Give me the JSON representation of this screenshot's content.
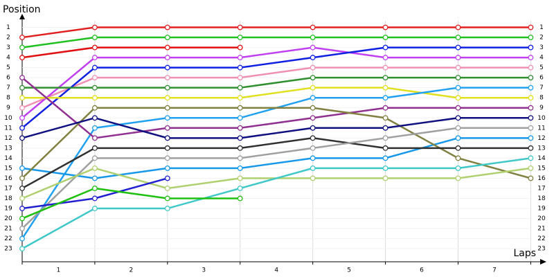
{
  "chart_data": {
    "type": "line",
    "y_label": "Position",
    "x_label": "Laps",
    "x": [
      0,
      1,
      2,
      3,
      4,
      5,
      6,
      7
    ],
    "xlim": [
      0,
      7.12
    ],
    "xticks": [
      {
        "value": 0.5,
        "label": "1"
      },
      {
        "value": 1.5,
        "label": "2"
      },
      {
        "value": 2.5,
        "label": "3"
      },
      {
        "value": 3.5,
        "label": "4"
      },
      {
        "value": 4.5,
        "label": "5"
      },
      {
        "value": 5.5,
        "label": "6"
      },
      {
        "value": 6.5,
        "label": "7"
      }
    ],
    "ylim": [
      24.3,
      0
    ],
    "yticks": [
      1,
      2,
      3,
      4,
      5,
      6,
      7,
      8,
      9,
      10,
      11,
      12,
      13,
      14,
      15,
      16,
      17,
      18,
      19,
      20,
      21,
      22,
      23
    ],
    "grid": true,
    "series": [
      {
        "color": "#e02020",
        "values": [
          2,
          1,
          1,
          1,
          1,
          1,
          1,
          1
        ]
      },
      {
        "color": "#20c020",
        "values": [
          3,
          2,
          2,
          2,
          2,
          2,
          2,
          2
        ]
      },
      {
        "color": "#e01010",
        "values": [
          4,
          3,
          3,
          3,
          null,
          null,
          null,
          null
        ]
      },
      {
        "color": "#f090b0",
        "values": [
          9,
          6,
          6,
          6,
          5,
          5,
          5,
          5
        ]
      },
      {
        "color": "#c040f0",
        "values": [
          10,
          4,
          4,
          4,
          3,
          4,
          4,
          4
        ]
      },
      {
        "color": "#1020e0",
        "values": [
          11,
          5,
          5,
          5,
          4,
          3,
          3,
          3
        ]
      },
      {
        "color": "#309030",
        "values": [
          7,
          7,
          7,
          7,
          6,
          6,
          6,
          6
        ]
      },
      {
        "color": "#e0e020",
        "values": [
          8,
          8,
          8,
          8,
          7,
          7,
          8,
          8
        ]
      },
      {
        "color": "#20a0f0",
        "values": [
          22,
          11,
          10,
          10,
          8,
          8,
          7,
          7
        ]
      },
      {
        "color": "#1898e8",
        "values": [
          15,
          16,
          15,
          15,
          14,
          14,
          12,
          12
        ]
      },
      {
        "color": "#903090",
        "values": [
          6,
          12,
          11,
          11,
          10,
          9,
          9,
          9
        ]
      },
      {
        "color": "#808040",
        "values": [
          16,
          9,
          9,
          9,
          9,
          10,
          14,
          16
        ]
      },
      {
        "color": "#101080",
        "values": [
          12,
          10,
          12,
          12,
          11,
          11,
          10,
          10
        ]
      },
      {
        "color": "#303030",
        "values": [
          17,
          13,
          13,
          13,
          12,
          13,
          13,
          13
        ]
      },
      {
        "color": "#a0a0a0",
        "values": [
          21,
          14,
          14,
          14,
          13,
          12,
          11,
          11
        ]
      },
      {
        "color": "#b0d070",
        "values": [
          18,
          15,
          17,
          16,
          16,
          16,
          16,
          15
        ]
      },
      {
        "color": "#40c8c8",
        "values": [
          23,
          19,
          19,
          17,
          15,
          15,
          15,
          14
        ]
      },
      {
        "color": "#2020d0",
        "values": [
          19,
          18,
          16,
          null,
          null,
          null,
          null,
          null
        ]
      },
      {
        "color": "#20c010",
        "values": [
          20,
          17,
          18,
          18,
          null,
          null,
          null,
          null
        ]
      }
    ]
  }
}
